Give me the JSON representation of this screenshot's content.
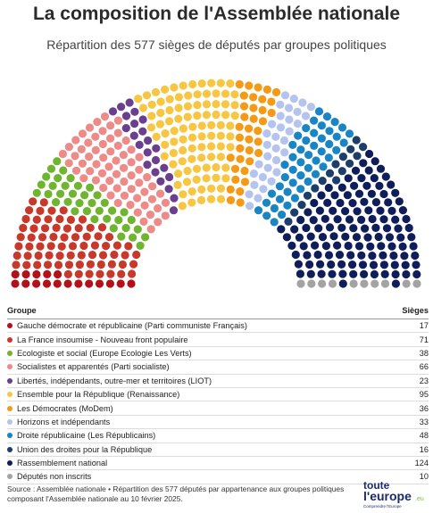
{
  "title": "La composition de l'Assemblée nationale",
  "subtitle": "Répartition des 577 sièges de députés par groupes politiques",
  "table": {
    "col_group": "Groupe",
    "col_seats": "Sièges"
  },
  "source": "Source : Assemblée nationale • Répartition des 577 députés par appartenance aux groupes politiques composant l'Assemblée nationale au 10 février 2025.",
  "logo": {
    "line1": "toute",
    "line2": "l'europe",
    "tagline": "Comprendre l'Europe",
    "suffix": ".eu"
  },
  "chart_data": {
    "type": "hemicycle",
    "total_seats": 577,
    "series": [
      {
        "name": "Gauche démocrate et républicaine (Parti communiste Français)",
        "value": 17,
        "color": "#b3101a"
      },
      {
        "name": "La France insoumise - Nouveau front populaire",
        "value": 71,
        "color": "#c8392b"
      },
      {
        "name": "Ecologiste et social (Europe Ecologie Les Verts)",
        "value": 38,
        "color": "#6fb530"
      },
      {
        "name": "Socialistes et apparentés (Parti socialiste)",
        "value": 66,
        "color": "#ee8a88"
      },
      {
        "name": "Libertés, indépendants, outre-mer et territoires (LIOT)",
        "value": 23,
        "color": "#6a3f8f"
      },
      {
        "name": "Ensemble pour la République (Renaissance)",
        "value": 95,
        "color": "#f7c642"
      },
      {
        "name": "Les Démocrates (MoDem)",
        "value": 36,
        "color": "#f49a16"
      },
      {
        "name": "Horizons et indépendants",
        "value": 33,
        "color": "#b5c4ee"
      },
      {
        "name": "Droite républicaine (Les Républicains)",
        "value": 48,
        "color": "#1a85c4"
      },
      {
        "name": "Union des droites pour la République",
        "value": 16,
        "color": "#1d3d6b"
      },
      {
        "name": "Rassemblement national",
        "value": 124,
        "color": "#0f1d5a"
      },
      {
        "name": "Députés non inscrits",
        "value": 10,
        "color": "#a3a3a3"
      }
    ]
  }
}
